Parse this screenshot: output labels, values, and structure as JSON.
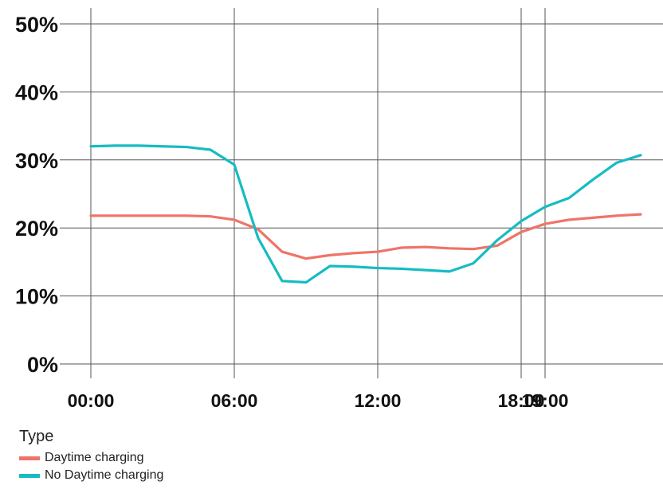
{
  "chart_data": {
    "type": "line",
    "title": "",
    "xlabel": "",
    "ylabel": "",
    "ylim": [
      0,
      50
    ],
    "xlim": [
      0,
      23
    ],
    "grid": true,
    "y_ticks": [
      {
        "value": 0,
        "label": "0%"
      },
      {
        "value": 10,
        "label": "10%"
      },
      {
        "value": 20,
        "label": "20%"
      },
      {
        "value": 30,
        "label": "30%"
      },
      {
        "value": 40,
        "label": "40%"
      },
      {
        "value": 50,
        "label": "50%"
      }
    ],
    "x_ticks": [
      {
        "value": 0,
        "label": "00:00"
      },
      {
        "value": 6,
        "label": "06:00"
      },
      {
        "value": 12,
        "label": "12:00"
      },
      {
        "value": 18,
        "label": "18:00"
      },
      {
        "value": 19,
        "label": "19:00"
      }
    ],
    "legend": {
      "title": "Type",
      "placement": "bottom-left"
    },
    "x": [
      0,
      1,
      2,
      3,
      4,
      5,
      6,
      7,
      8,
      9,
      10,
      11,
      12,
      13,
      14,
      15,
      16,
      17,
      18,
      19,
      20,
      21,
      22,
      23
    ],
    "series": [
      {
        "name": "Daytime charging",
        "color": "#EE7468",
        "values": [
          21.8,
          21.8,
          21.8,
          21.8,
          21.8,
          21.7,
          21.2,
          19.8,
          16.5,
          15.5,
          16.0,
          16.3,
          16.5,
          17.1,
          17.2,
          17.0,
          16.9,
          17.4,
          19.4,
          20.6,
          21.2,
          21.5,
          21.8,
          22.0
        ]
      },
      {
        "name": "No Daytime charging",
        "color": "#16BCC2",
        "values": [
          32.0,
          32.1,
          32.1,
          32.0,
          31.9,
          31.5,
          29.3,
          18.5,
          12.2,
          12.0,
          14.4,
          14.3,
          14.1,
          14.0,
          13.8,
          13.6,
          14.8,
          18.2,
          21.0,
          23.1,
          24.4,
          27.1,
          29.6,
          30.7
        ]
      }
    ]
  }
}
